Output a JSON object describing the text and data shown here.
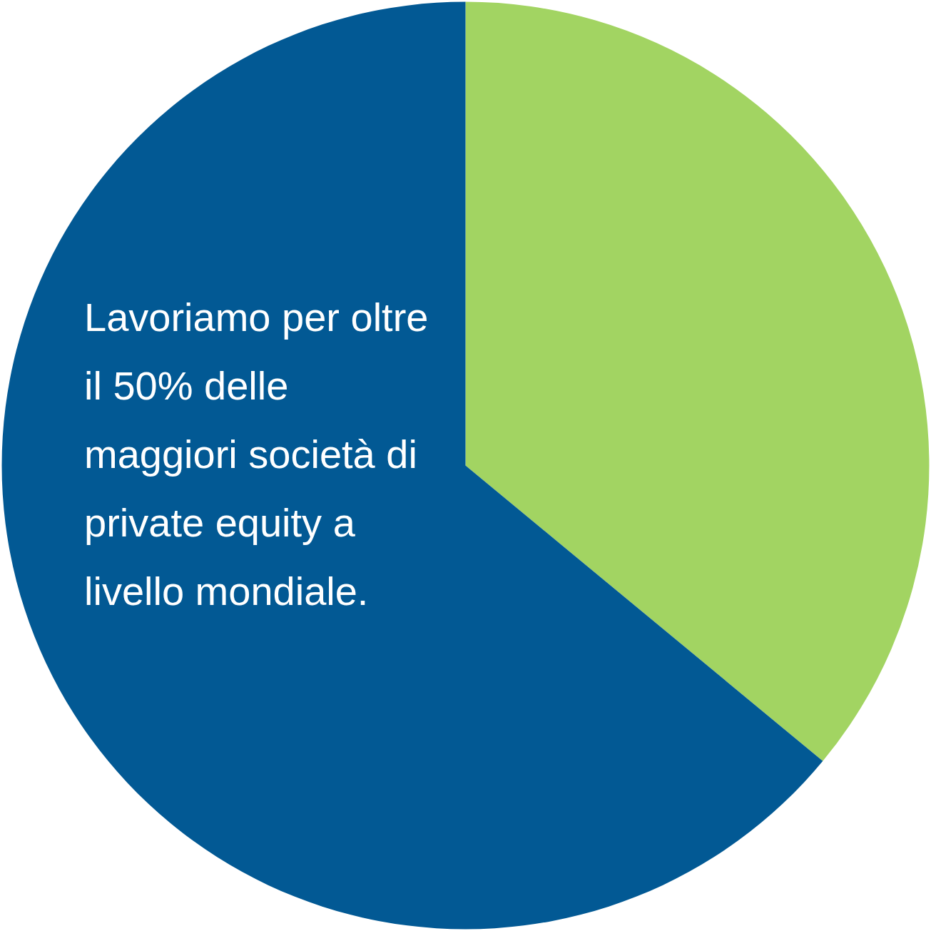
{
  "chart_data": {
    "type": "pie",
    "categories": [
      null,
      null
    ],
    "values": [
      36,
      64
    ],
    "colors": [
      "#a2d462",
      "#025994"
    ],
    "annotations": [
      "Lavoriamo per oltre il 50% delle maggiori società di private equity a livello mondiale."
    ]
  }
}
